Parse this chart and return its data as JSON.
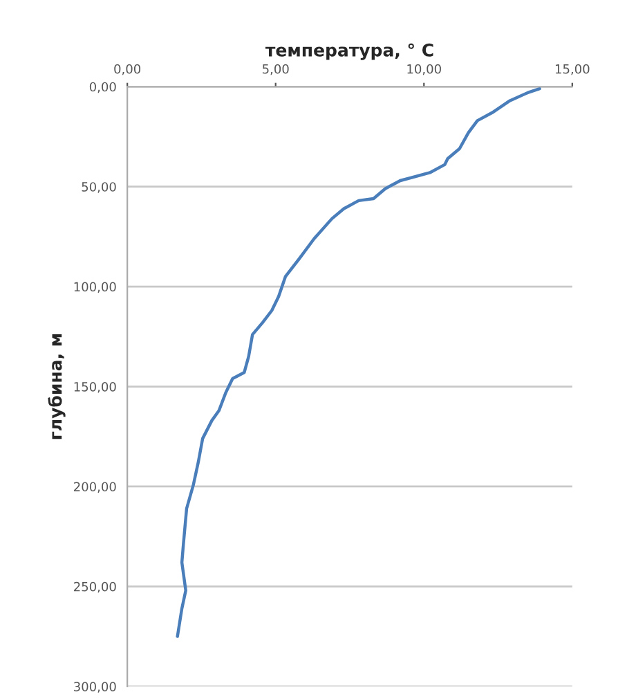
{
  "chart_data": {
    "type": "line",
    "xlabel": "температура, ° C",
    "ylabel": "глубина, м",
    "x": [
      13.9,
      13.5,
      12.9,
      12.3,
      11.8,
      11.5,
      11.2,
      10.8,
      10.7,
      10.2,
      9.2,
      8.7,
      8.3,
      7.8,
      7.3,
      6.9,
      6.3,
      5.8,
      5.33,
      5.1,
      4.87,
      4.56,
      4.22,
      4.09,
      3.94,
      3.55,
      3.32,
      3.09,
      2.85,
      2.54,
      2.39,
      2.23,
      2.0,
      1.89,
      1.84,
      1.97,
      1.84,
      1.69
    ],
    "series": [
      {
        "color": "#4a7ebb",
        "values": [
          1,
          3,
          7,
          13,
          17,
          23,
          31,
          36,
          39,
          43,
          47,
          51,
          56,
          57,
          61,
          66,
          76,
          86,
          95,
          105,
          112,
          118,
          124,
          135,
          143,
          146,
          153,
          162,
          167,
          176,
          188,
          199,
          211,
          229,
          238,
          252,
          261,
          275
        ]
      }
    ],
    "xlim": [
      0,
      15
    ],
    "xticks": [
      {
        "value": 0,
        "label": "0,00"
      },
      {
        "value": 5,
        "label": "5,00"
      },
      {
        "value": 10,
        "label": "10,00"
      },
      {
        "value": 15,
        "label": "15,00"
      }
    ],
    "ylim": [
      300,
      0
    ],
    "yticks": [
      {
        "value": 0,
        "label": "0,00"
      },
      {
        "value": 50,
        "label": "50,00"
      },
      {
        "value": 100,
        "label": "100,00"
      },
      {
        "value": 150,
        "label": "150,00"
      },
      {
        "value": 200,
        "label": "200,00"
      },
      {
        "value": 250,
        "label": "250,00"
      },
      {
        "value": 300,
        "label": "300,00"
      }
    ],
    "grid": "y",
    "marker": "none",
    "line_style": "solid"
  }
}
